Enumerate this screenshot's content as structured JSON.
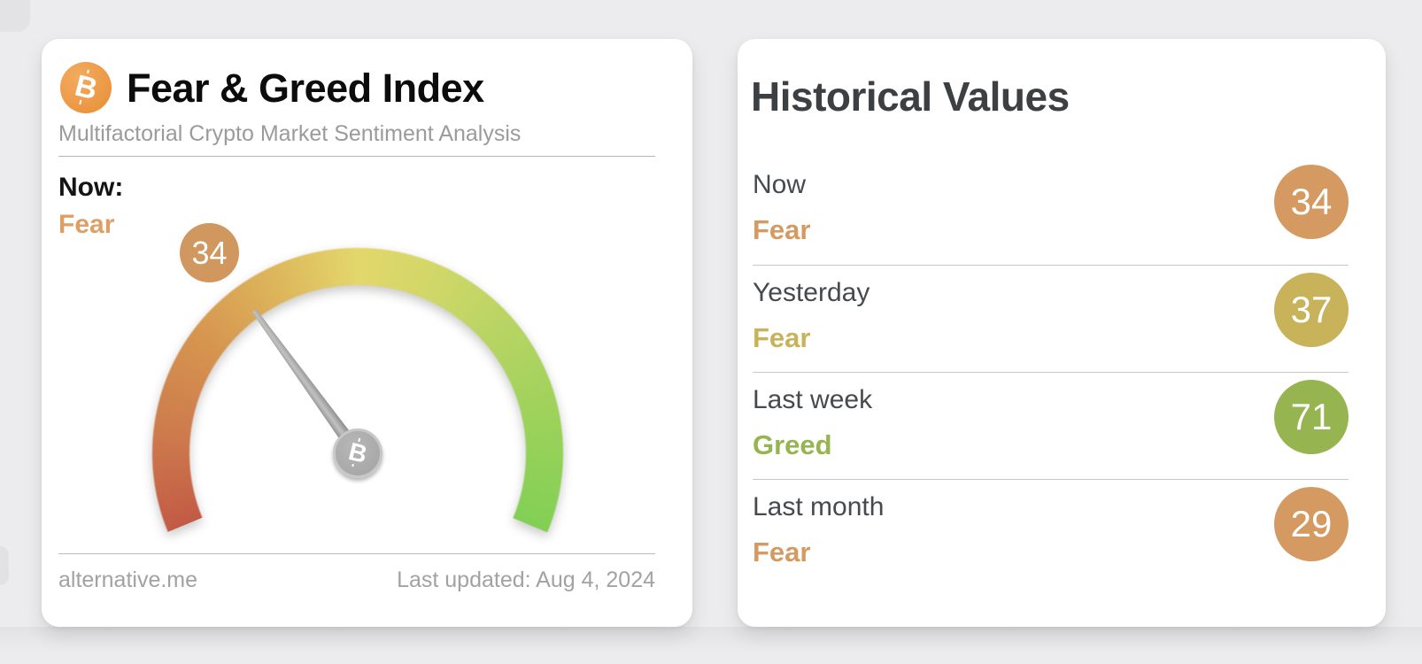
{
  "left_card": {
    "logo_icon": "bitcoin-icon",
    "logo_symbol": "B",
    "title": "Fear & Greed Index",
    "subtitle": "Multifactorial Crypto Market Sentiment Analysis",
    "now_label": "Now:",
    "now_sentiment": "Fear",
    "now_sentiment_color": "#dd9f63",
    "gauge_badge_value": "34",
    "gauge_badge_color": "#d0975e",
    "footer_site": "alternative.me",
    "footer_updated": "Last updated: Aug 4, 2024"
  },
  "right_card": {
    "title": "Historical Values",
    "rows": [
      {
        "label": "Now",
        "sentiment": "Fear",
        "value": "34",
        "color": "#d49a62"
      },
      {
        "label": "Yesterday",
        "sentiment": "Fear",
        "value": "37",
        "color": "#c8b35a"
      },
      {
        "label": "Last week",
        "sentiment": "Greed",
        "value": "71",
        "color": "#96b44f"
      },
      {
        "label": "Last month",
        "sentiment": "Fear",
        "value": "29",
        "color": "#d49a62"
      }
    ]
  },
  "chart_data": {
    "type": "gauge",
    "title": "Fear & Greed Index",
    "subtitle": "Multifactorial Crypto Market Sentiment Analysis",
    "value": 34,
    "classification": "Fear",
    "range": [
      0,
      100
    ],
    "sweep_degrees": 225,
    "color_scale": [
      "#c25a45",
      "#d6944f",
      "#e3d76b",
      "#b9d464",
      "#82cf55"
    ],
    "last_updated": "Last updated: Aug 4, 2024",
    "source": "alternative.me",
    "historical": [
      {
        "label": "Now",
        "value": 34,
        "classification": "Fear"
      },
      {
        "label": "Yesterday",
        "value": 37,
        "classification": "Fear"
      },
      {
        "label": "Last week",
        "value": 71,
        "classification": "Greed"
      },
      {
        "label": "Last month",
        "value": 29,
        "classification": "Fear"
      }
    ]
  }
}
